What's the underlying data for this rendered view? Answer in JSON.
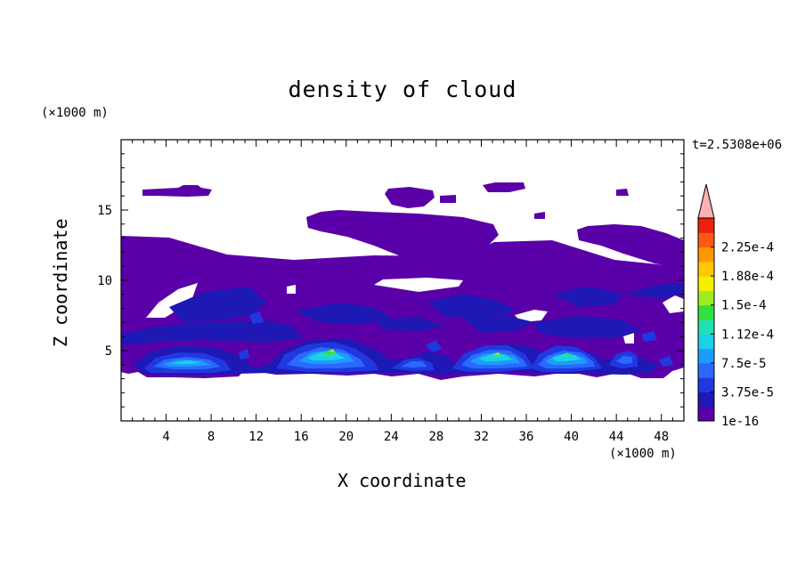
{
  "chart_data": {
    "type": "heatmap",
    "title": "density of cloud",
    "xlabel": "X coordinate",
    "ylabel": "Z coordinate",
    "x_unit": "(×1000 m)",
    "y_unit": "(×1000 m)",
    "annotation": "t=2.5308e+06",
    "xlim": [
      0,
      50
    ],
    "ylim": [
      0,
      20
    ],
    "x_ticks": [
      4,
      8,
      12,
      16,
      20,
      24,
      28,
      32,
      36,
      40,
      44,
      48
    ],
    "y_ticks": [
      5,
      10,
      15
    ],
    "colorbar": {
      "levels": [
        "1e-16",
        "3.75e-5",
        "7.5e-5",
        "1.12e-4",
        "1.5e-4",
        "1.88e-4",
        "2.25e-4"
      ],
      "colors": [
        "#5a00a8",
        "#1e18b4",
        "#2038e0",
        "#2c68ff",
        "#1c9cff",
        "#1cd0e8",
        "#22e0b0",
        "#34e040",
        "#a0ec20",
        "#f4f000",
        "#ffc800",
        "#ff9600",
        "#ff5a14",
        "#ee2010",
        "#ffb0b0"
      ],
      "extend": "max"
    },
    "regions": [
      {
        "name": "upper cloud layer left",
        "x_range": [
          2,
          8.3
        ],
        "z_range": [
          15.8,
          16.6
        ],
        "density": "1e-16"
      },
      {
        "name": "upper cloud layer center",
        "x_range": [
          23,
          29
        ],
        "z_range": [
          15.3,
          16.5
        ],
        "density": "1e-16"
      },
      {
        "name": "upper cloud center-right",
        "x_range": [
          32,
          36
        ],
        "z_range": [
          16.1,
          16.8
        ],
        "density": "1e-16"
      },
      {
        "name": "mid-upper cloud left",
        "x_range": [
          16.5,
          33
        ],
        "z_range": [
          11.3,
          14.5
        ],
        "density": "1e-16"
      },
      {
        "name": "mid-upper cloud right",
        "x_range": [
          40.5,
          50
        ],
        "z_range": [
          10.5,
          14
        ],
        "density": "1e-16"
      },
      {
        "name": "main cloud deck",
        "x_range": [
          0,
          50
        ],
        "z_range": [
          3.2,
          13
        ],
        "density": "1e-16 to 3.75e-5"
      },
      {
        "name": "core 1",
        "center": [
          6,
          4.6
        ],
        "max_density": "1.12e-4"
      },
      {
        "name": "core 2",
        "center": [
          18.5,
          5
        ],
        "max_density": "1.88e-4"
      },
      {
        "name": "core 3",
        "center": [
          26,
          4.2
        ],
        "max_density": "7.5e-5"
      },
      {
        "name": "core 4",
        "center": [
          33,
          4.8
        ],
        "max_density": "1.5e-4"
      },
      {
        "name": "core 5",
        "center": [
          39,
          4.8
        ],
        "max_density": "1.5e-4"
      },
      {
        "name": "core 6",
        "center": [
          44.5,
          4.5
        ],
        "max_density": "3.75e-5"
      }
    ]
  }
}
